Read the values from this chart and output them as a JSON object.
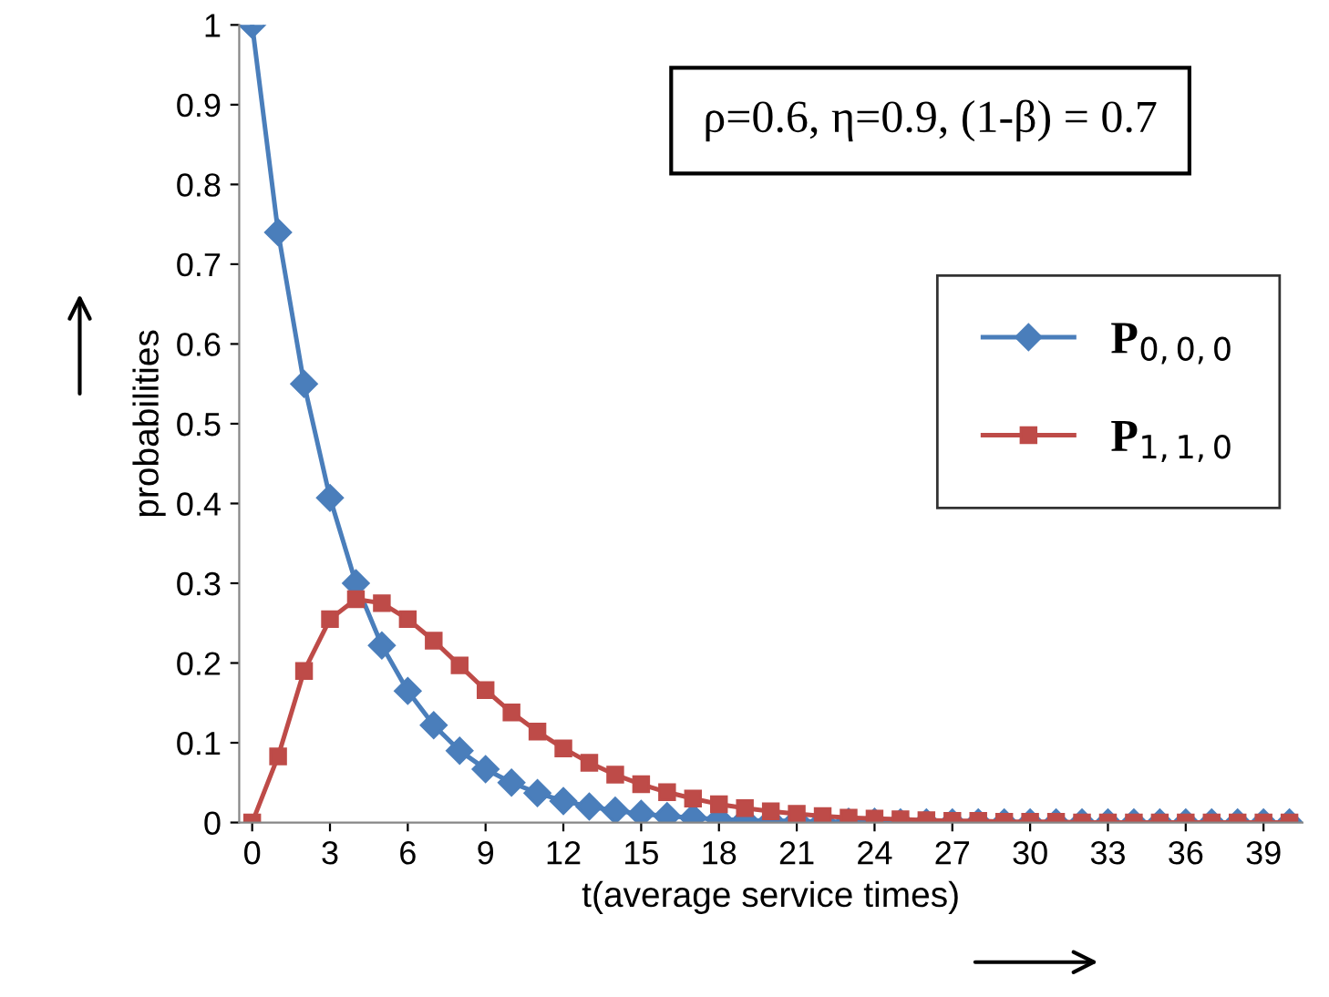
{
  "chart_data": {
    "type": "line",
    "xlabel": "t(average service times)",
    "ylabel": "probabilities",
    "categories": [
      "0",
      null,
      null,
      "3",
      null,
      null,
      "6",
      null,
      null,
      "9",
      null,
      null,
      "12",
      null,
      null,
      "15",
      null,
      null,
      "18",
      null,
      null,
      "21",
      null,
      null,
      "24",
      null,
      null,
      "27",
      null,
      null,
      "30",
      null,
      null,
      "33",
      null,
      null,
      "36",
      null,
      null,
      "39",
      null
    ],
    "series": [
      {
        "name": "P$_{0,0,0}$",
        "color": "#4a7ebb",
        "marker": "diamond",
        "values": [
          1,
          0.74,
          0.55,
          0.407,
          0.3,
          0.222,
          0.165,
          0.122,
          0.09,
          0.067,
          0.05,
          0.037,
          0.027,
          0.02,
          0.015,
          0.011,
          0.008,
          0.006,
          0.004,
          0.003,
          0.002,
          0.002,
          0.001,
          0.001,
          0.001,
          0,
          0,
          0,
          0,
          0,
          0,
          0,
          0,
          0,
          0,
          0,
          0,
          0,
          0,
          0,
          0
        ]
      },
      {
        "name": "P$_{1,1,0}$",
        "color": "#be4b48",
        "marker": "square",
        "values": [
          0,
          0.083,
          0.19,
          0.255,
          0.28,
          0.275,
          0.255,
          0.228,
          0.197,
          0.166,
          0.138,
          0.114,
          0.093,
          0.075,
          0.06,
          0.048,
          0.038,
          0.03,
          0.023,
          0.018,
          0.014,
          0.011,
          0.008,
          0.006,
          0.005,
          0.004,
          0.003,
          0.002,
          0.002,
          0.001,
          0.001,
          0.001,
          0,
          0,
          0,
          0,
          0,
          0,
          0,
          0,
          0
        ]
      }
    ],
    "ylim": [
      0,
      1
    ],
    "yticks": [
      0,
      0.1,
      0.2,
      0.3,
      0.4,
      0.5,
      0.6,
      0.7,
      0.8,
      0.9,
      1
    ],
    "annotations": [
      "ρ=0.6, η=0.9, (1-β) = 0.7"
    ],
    "legend": "right",
    "grid": false
  }
}
